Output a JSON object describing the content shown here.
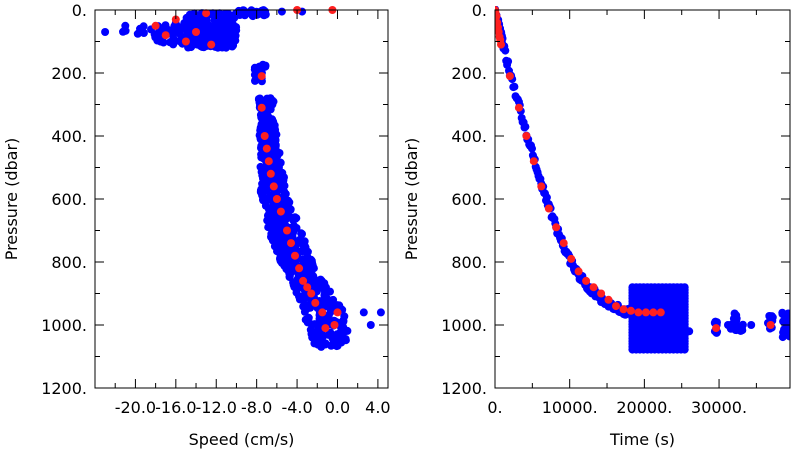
{
  "chart_data": [
    {
      "type": "scatter",
      "xlabel": "Speed (cm/s)",
      "ylabel": "Pressure (dbar)",
      "xlim": [
        -24.0,
        5.0
      ],
      "ylim": [
        1200,
        0
      ],
      "y_reversed": true,
      "x_ticks": [
        "-20.0",
        "-16.0",
        "-12.0",
        "-8.0",
        "-4.0",
        "0.0",
        "4.0"
      ],
      "x_tick_values": [
        -20,
        -16,
        -12,
        -8,
        -4,
        0,
        4
      ],
      "y_ticks": [
        "0.",
        "200.",
        "400.",
        "600.",
        "800.",
        "1000.",
        "1200."
      ],
      "y_tick_values": [
        0,
        200,
        400,
        600,
        800,
        1000,
        1200
      ],
      "colors": {
        "raw": "#0000ff",
        "binned": "#ff2020"
      },
      "series": [
        {
          "role": "raw",
          "clusters": [
            {
              "x": [
                -15,
                -10
              ],
              "y": [
                10,
                120
              ],
              "n": 260
            },
            {
              "x": [
                -18.5,
                -14
              ],
              "y": [
                40,
                110
              ],
              "n": 60
            },
            {
              "x": [
                -21.5,
                -19
              ],
              "y": [
                50,
                80
              ],
              "n": 6
            },
            {
              "x": [
                -10,
                -7
              ],
              "y": [
                0,
                20
              ],
              "n": 30
            },
            {
              "x": [
                -8.2,
                -7
              ],
              "y": [
                170,
                230
              ],
              "n": 25
            },
            {
              "x": [
                -7.8,
                -6.2
              ],
              "y": [
                280,
                320
              ],
              "n": 25
            },
            {
              "x": [
                -8,
                -6
              ],
              "y": [
                380,
                420
              ],
              "n": 25
            }
          ],
          "profile": {
            "y": [
              330,
              400,
              480,
              560,
              640,
              720,
              800,
              860,
              920,
              980,
              1040,
              1070
            ],
            "x_center": [
              -7.0,
              -6.8,
              -6.6,
              -6.4,
              -5.8,
              -5.0,
              -4.0,
              -3.0,
              -2.0,
              -1.0,
              -0.8,
              -0.8
            ],
            "x_halfwidth": [
              0.6,
              0.8,
              1.0,
              1.3,
              1.5,
              1.6,
              1.6,
              1.6,
              1.8,
              2.2,
              2.0,
              1.2
            ],
            "n": 650
          },
          "outliers": [
            {
              "x": -23.0,
              "y": 70
            },
            {
              "x": -21.0,
              "y": 50
            },
            {
              "x": 2.6,
              "y": 960
            },
            {
              "x": 3.3,
              "y": 1000
            },
            {
              "x": 4.3,
              "y": 960
            },
            {
              "x": -5.5,
              "y": 5
            },
            {
              "x": -3.5,
              "y": 5
            }
          ]
        },
        {
          "role": "binned",
          "x": [
            -18.0,
            -17.0,
            -16.0,
            -15.0,
            -14.0,
            -12.5,
            -13.0,
            -4.0,
            -0.5,
            -7.5,
            -7.5,
            -7.2,
            -7.0,
            -6.8,
            -6.6,
            -6.3,
            -6.0,
            -5.6,
            -5.0,
            -4.6,
            -4.2,
            -3.8,
            -3.4,
            -3.0,
            -2.6,
            -2.2,
            -1.5,
            -1.2,
            0.0,
            -0.3
          ],
          "y": [
            50,
            80,
            30,
            100,
            70,
            110,
            10,
            0,
            0,
            210,
            310,
            400,
            440,
            480,
            520,
            560,
            600,
            640,
            700,
            740,
            780,
            820,
            860,
            880,
            900,
            930,
            960,
            1010,
            960,
            1000
          ]
        }
      ]
    },
    {
      "type": "scatter",
      "xlabel": "Time (s)",
      "ylabel": "Pressure (dbar)",
      "xlim": [
        0,
        39500
      ],
      "ylim": [
        1200,
        0
      ],
      "y_reversed": true,
      "x_ticks": [
        "0.",
        "10000.",
        "20000.",
        "30000."
      ],
      "x_tick_values": [
        0,
        10000,
        20000,
        30000
      ],
      "y_ticks": [
        "0.",
        "200.",
        "400.",
        "600.",
        "800.",
        "1000.",
        "1200."
      ],
      "y_tick_values": [
        0,
        200,
        400,
        600,
        800,
        1000,
        1200
      ],
      "colors": {
        "raw": "#0000ff",
        "binned": "#ff2020"
      },
      "series": [
        {
          "role": "raw",
          "descent": {
            "x": [
              0,
              200,
              400,
              600,
              800,
              1000,
              2000,
              3200,
              4200,
              5200,
              6200,
              7200,
              8200,
              9200,
              10200,
              11200,
              12200,
              13200,
              14200,
              15200,
              16200,
              17200,
              18200
            ],
            "y": [
              0,
              20,
              40,
              60,
              80,
              100,
              200,
              300,
              390,
              470,
              550,
              620,
              690,
              750,
              800,
              840,
              870,
              895,
              915,
              930,
              945,
              955,
              960
            ]
          },
          "stripes": {
            "x_start": 18400,
            "x_end": 25500,
            "x_step": 500,
            "y": [
              880,
              1080
            ]
          },
          "clusters": [
            {
              "x": [
                29400,
                29800
              ],
              "y": [
                985,
                1025
              ],
              "n": 10
            },
            {
              "x": [
                31500,
                32400
              ],
              "y": [
                960,
                1020
              ],
              "n": 16
            },
            {
              "x": [
                32800,
                33300
              ],
              "y": [
                990,
                1020
              ],
              "n": 8
            },
            {
              "x": [
                36500,
                37200
              ],
              "y": [
                970,
                1020
              ],
              "n": 14
            },
            {
              "x": [
                38400,
                39500
              ],
              "y": [
                960,
                1040
              ],
              "n": 18
            }
          ],
          "outliers": [
            {
              "x": 26000,
              "y": 1020
            },
            {
              "x": 31200,
              "y": 1000
            },
            {
              "x": 34300,
              "y": 1000
            }
          ]
        },
        {
          "role": "binned",
          "x": [
            0,
            100,
            200,
            300,
            400,
            500,
            600,
            700,
            800,
            2000,
            3200,
            4200,
            5200,
            6200,
            7200,
            8200,
            9200,
            10200,
            11200,
            12200,
            13200,
            14200,
            15200,
            16200,
            17200,
            18200,
            19200,
            20200,
            21200,
            22200,
            29600,
            36900
          ],
          "y": [
            0,
            10,
            20,
            40,
            55,
            70,
            85,
            95,
            110,
            210,
            310,
            400,
            480,
            560,
            630,
            690,
            740,
            790,
            830,
            860,
            880,
            900,
            920,
            940,
            950,
            955,
            960,
            960,
            960,
            960,
            1010,
            1000
          ]
        }
      ]
    }
  ]
}
